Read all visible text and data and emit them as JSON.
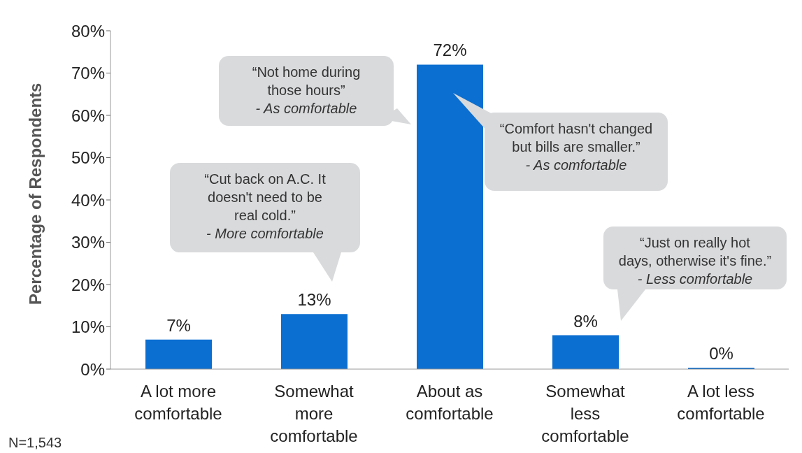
{
  "chart_data": {
    "type": "bar",
    "ylabel": "Percentage of Respondents",
    "categories": [
      "A lot more comfortable",
      "Somewhat more comfortable",
      "About as comfortable",
      "Somewhat less comfortable",
      "A lot less comfortable"
    ],
    "values": [
      7,
      13,
      72,
      8,
      0
    ],
    "color": "#0b6fd1",
    "value_labels": [
      "7%",
      "13%",
      "72%",
      "8%",
      "0%"
    ],
    "ylim": [
      0,
      80
    ],
    "yticks": [
      {
        "value": 0,
        "label": "0%"
      },
      {
        "value": 10,
        "label": "10%"
      },
      {
        "value": 20,
        "label": "20%"
      },
      {
        "value": 30,
        "label": "30%"
      },
      {
        "value": 40,
        "label": "40%"
      },
      {
        "value": 50,
        "label": "50%"
      },
      {
        "value": 60,
        "label": "60%"
      },
      {
        "value": 70,
        "label": "70%"
      },
      {
        "value": 80,
        "label": "80%"
      }
    ],
    "grid": false,
    "legend": false,
    "annotations": [
      "“Not home during\nthose hours”\n- As comfortable",
      "“Comfort hasn't changed\nbut bills are smaller.”\n- As comfortable",
      "“Cut back on A.C. It\ndoesn't need to be\nreal cold.”\n- More comfortable",
      "“Just on really hot\ndays, otherwise it's fine.”\n- Less comfortable",
      "N=1,543"
    ]
  }
}
